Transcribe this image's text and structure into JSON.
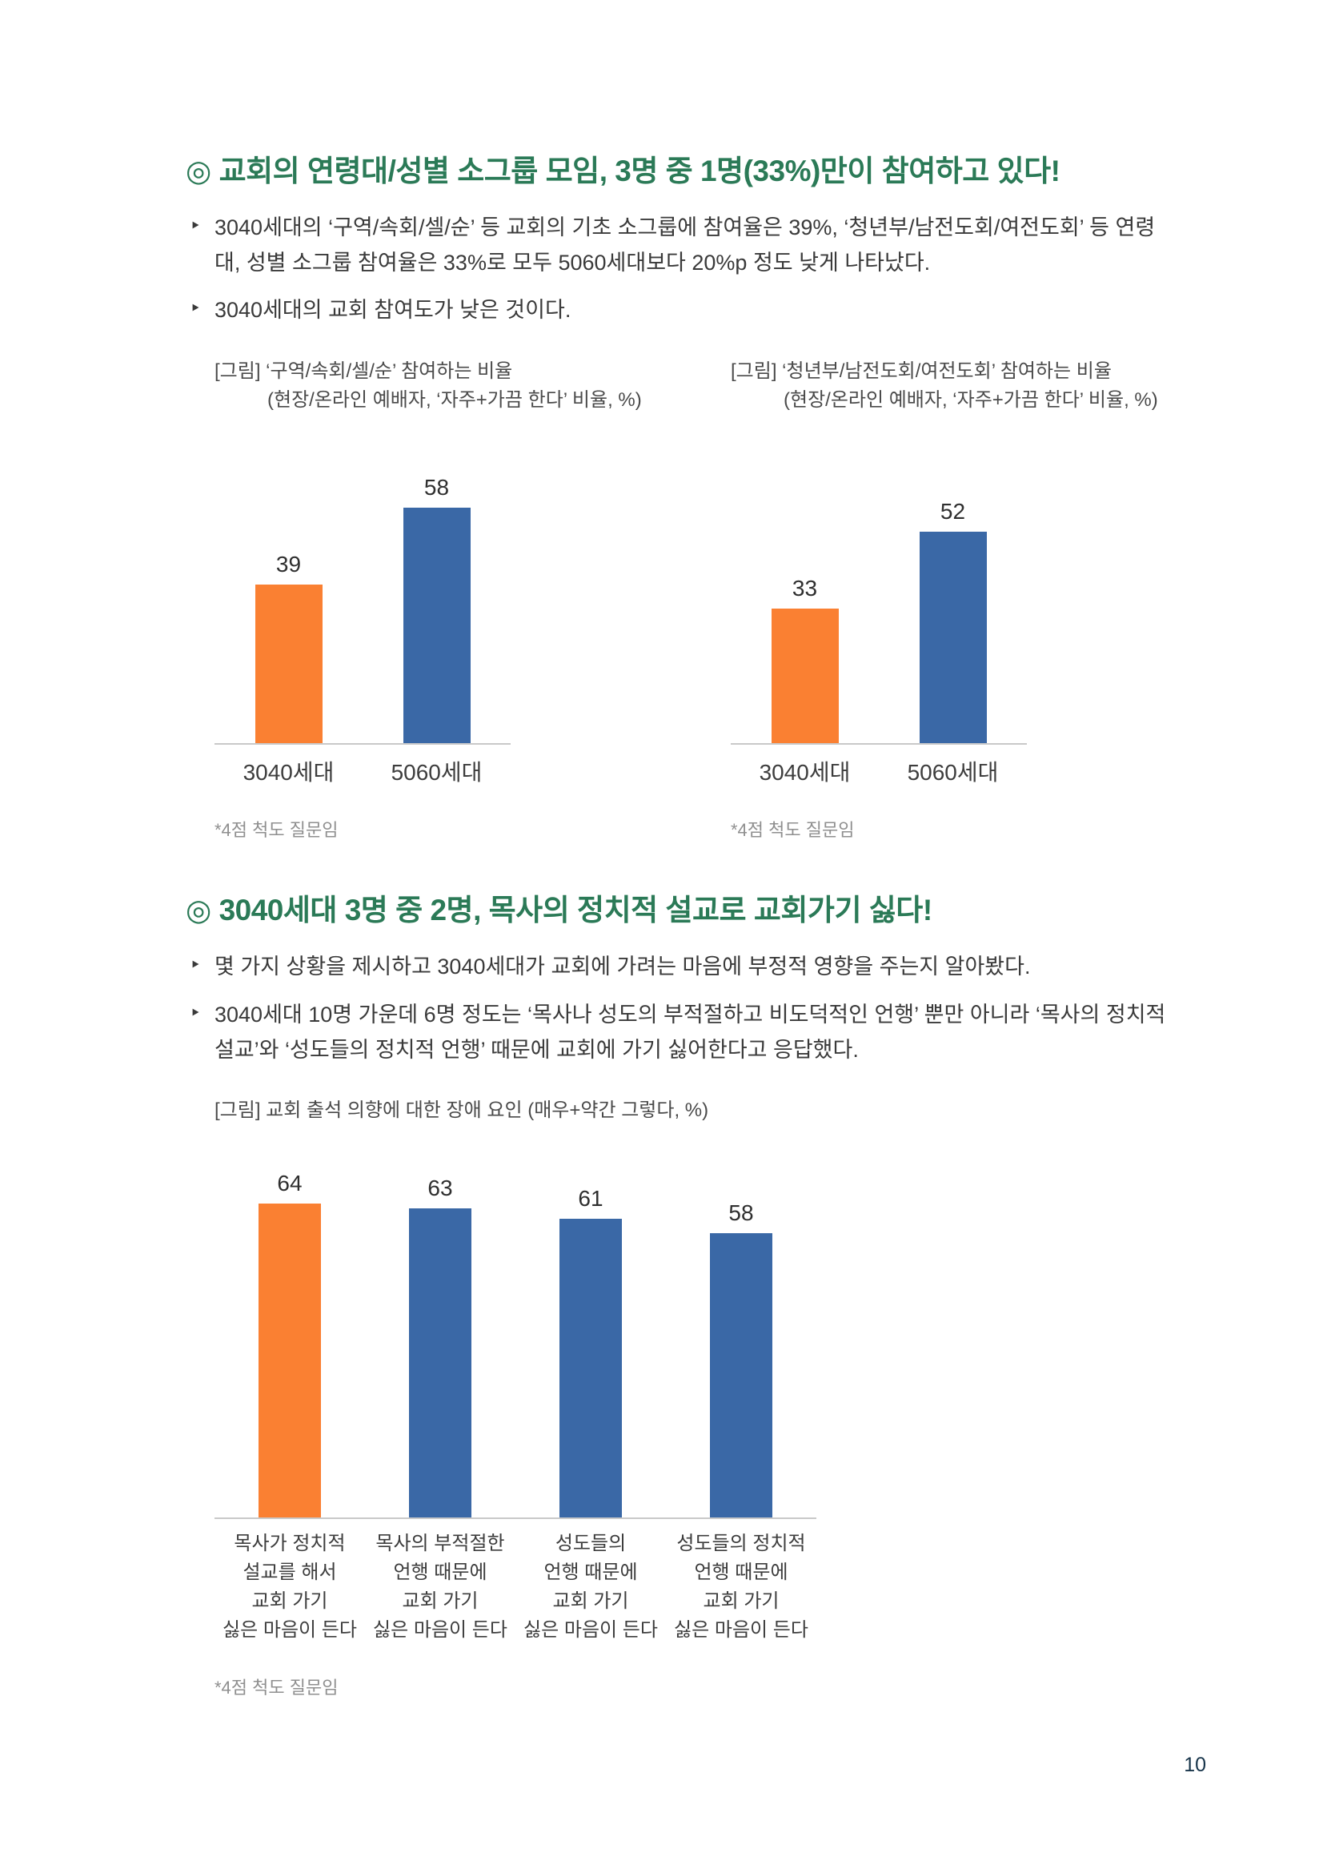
{
  "page": {
    "number": "10"
  },
  "ui": {
    "bullet_marker": "‣"
  },
  "colors": {
    "accent_green": "#2b7a57",
    "bar_orange": "#fa8032",
    "bar_blue": "#3a68a6",
    "axis_line": "#c9c9c9",
    "footnote_gray": "#8f8f8f",
    "page_number_navy": "#17344a"
  },
  "sections": [
    {
      "heading": "◎ 교회의 연령대/성별 소그룹 모임, 3명 중 1명(33%)만이 참여하고 있다!",
      "bullets": [
        "3040세대의 ‘구역/속회/셀/순’ 등 교회의 기초 소그룹에 참여율은 39%, ‘청년부/남전도회/여전도회’ 등 연령대, 성별 소그룹 참여율은 33%로 모두 5060세대보다 20%p 정도 낮게 나타났다.",
        "3040세대의 교회 참여도가 낮은 것이다."
      ]
    },
    {
      "heading": "◎ 3040세대 3명 중 2명, 목사의 정치적 설교로 교회가기 싫다!",
      "bullets": [
        "몇 가지 상황을 제시하고 3040세대가 교회에 가려는 마음에 부정적 영향을 주는지 알아봤다.",
        "3040세대 10명 가운데 6명 정도는 ‘목사나 성도의 부적절하고 비도덕적인 언행’ 뿐만 아니라 ‘목사의 정치적 설교’와 ‘성도들의 정치적 언행’ 때문에 교회에 가기 싫어한다고 응답했다."
      ]
    }
  ],
  "chart_data": [
    {
      "type": "bar",
      "title": "[그림] ‘구역/속회/셀/순’ 참여하는 비율",
      "subtitle": "(현장/온라인 예배자, ‘자주+가끔 한다’ 비율, %)",
      "categories": [
        "3040세대",
        "5060세대"
      ],
      "values": [
        39,
        58
      ],
      "bar_colors": [
        "#fa8032",
        "#3a68a6"
      ],
      "unit": "%",
      "ylim": [
        0,
        65
      ],
      "grid": false,
      "legend": "none",
      "value_labels": true,
      "footnote": "*4점 척도 질문임"
    },
    {
      "type": "bar",
      "title": "[그림] ‘청년부/남전도회/여전도회’ 참여하는 비율",
      "subtitle": "(현장/온라인 예배자, ‘자주+가끔 한다’ 비율, %)",
      "categories": [
        "3040세대",
        "5060세대"
      ],
      "values": [
        33,
        52
      ],
      "bar_colors": [
        "#fa8032",
        "#3a68a6"
      ],
      "unit": "%",
      "ylim": [
        0,
        65
      ],
      "grid": false,
      "legend": "none",
      "value_labels": true,
      "footnote": "*4점 척도 질문임"
    },
    {
      "type": "bar",
      "title": "[그림] 교회 출석 의향에 대한 장애 요인 (매우+약간 그렇다, %)",
      "subtitle": "",
      "categories": [
        "목사가 정치적\n설교를 해서\n교회 가기\n싫은 마음이 든다",
        "목사의 부적절한\n언행 때문에\n교회 가기\n싫은 마음이 든다",
        "성도들의\n언행 때문에\n교회 가기\n싫은 마음이 든다",
        "성도들의 정치적\n언행 때문에\n교회 가기\n싫은 마음이 든다"
      ],
      "values": [
        64,
        63,
        61,
        58
      ],
      "bar_colors": [
        "#fa8032",
        "#3a68a6",
        "#3a68a6",
        "#3a68a6"
      ],
      "unit": "%",
      "ylim": [
        0,
        67
      ],
      "grid": false,
      "legend": "none",
      "value_labels": true,
      "footnote": "*4점 척도 질문임"
    }
  ]
}
